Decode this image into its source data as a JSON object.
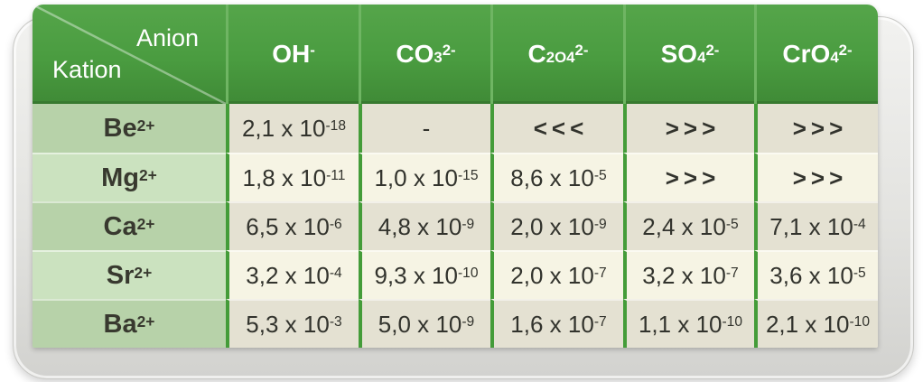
{
  "chart_data": {
    "type": "table",
    "corner_header": {
      "anion_label": "Anion",
      "kation_label": "Kation"
    },
    "anion_columns": [
      "OH^-",
      "CO_3^2-",
      "C_2O_4^2-",
      "SO_4^2-",
      "CrO_4^2-"
    ],
    "rows": [
      {
        "kation": "Be^2+",
        "values": [
          "2,1 x 10^-18",
          "-",
          "<<<",
          ">>>",
          ">>>"
        ]
      },
      {
        "kation": "Mg^2+",
        "values": [
          "1,8 x 10^-11",
          "1,0 x 10^-15",
          "8,6 x 10^-5",
          ">>>",
          ">>>"
        ]
      },
      {
        "kation": "Ca^2+",
        "values": [
          "6,5 x 10^-6",
          "4,8 x 10^-9",
          "2,0 x 10^-9",
          "2,4 x 10^-5",
          "7,1 x 10^-4"
        ]
      },
      {
        "kation": "Sr^2+",
        "values": [
          "3,2 x 10^-4",
          "9,3 x 10^-10",
          "2,0 x 10^-7",
          "3,2 x 10^-7",
          "3,6 x 10^-5"
        ]
      },
      {
        "kation": "Ba^2+",
        "values": [
          "5,3 x 10^-3",
          "5,0 x 10^-9",
          "1,6 x 10^-7",
          "1,1 x 10^-10",
          "2,1 x 10^-10"
        ]
      }
    ],
    "layout_hints": {
      "header_position": "top-and-left",
      "corner_split": "diagonal"
    }
  },
  "colors": {
    "header_green": "#4a9c40",
    "header_separator_green": "#6fb563",
    "body_separator_green": "#449c39",
    "kation_cell_green_dark": "#b7d2a9",
    "kation_cell_green_light": "#cbe2bf",
    "value_cell_beige_dark": "#e4e1d2",
    "value_cell_beige_light": "#f6f4e4",
    "text_dark": "#32332d",
    "header_text": "#ffffff",
    "card_gray": "#e3e3e0"
  }
}
